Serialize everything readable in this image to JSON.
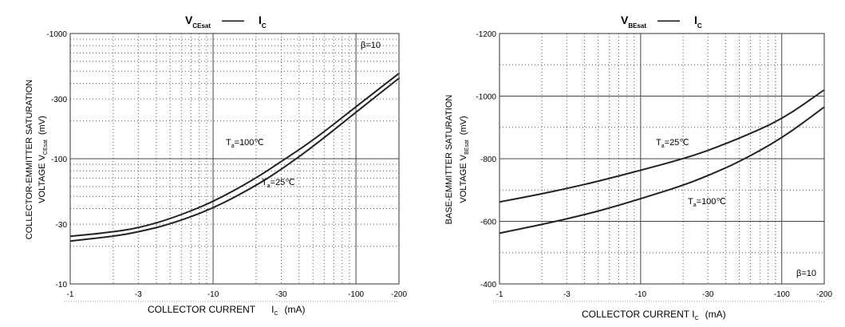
{
  "chart_data": [
    {
      "type": "line",
      "title": {
        "main": "V",
        "sub": "CEsat",
        "sep": "—",
        "main2": "I",
        "sub2": "C"
      },
      "xlabel": {
        "text": "COLLECTOR CURRENT",
        "sym": "I",
        "sub": "C",
        "unit": "(mA)"
      },
      "ylabel": {
        "line1": "COLLECTOR-EMMITTER SATURATION",
        "line2": "VOLTAGE",
        "sym": "V",
        "sub": "CEsat",
        "unit": "(mV)"
      },
      "x_scale": "log",
      "y_scale": "log",
      "xlim": [
        1,
        200
      ],
      "ylim": [
        10,
        1000
      ],
      "x_ticks": [
        {
          "value": 1,
          "label": "-1"
        },
        {
          "value": 3,
          "label": "-3"
        },
        {
          "value": 10,
          "label": "-10"
        },
        {
          "value": 30,
          "label": "-30"
        },
        {
          "value": 100,
          "label": "-100"
        },
        {
          "value": 200,
          "label": "-200"
        }
      ],
      "y_ticks": [
        {
          "value": 10,
          "label": "-10"
        },
        {
          "value": 30,
          "label": "-30"
        },
        {
          "value": 100,
          "label": "-100"
        },
        {
          "value": 300,
          "label": "-300"
        },
        {
          "value": 1000,
          "label": "-1000"
        }
      ],
      "beta_label": "β=10",
      "series": [
        {
          "label_main": "T",
          "label_sub": "a",
          "label_rest": "=100",
          "x": [
            1,
            2,
            3,
            5,
            10,
            20,
            30,
            50,
            100,
            200
          ],
          "y": [
            24,
            26,
            28,
            33,
            45,
            70,
            95,
            140,
            260,
            480
          ]
        },
        {
          "label_main": "T",
          "label_sub": "a",
          "label_rest": "=25",
          "x": [
            1,
            2,
            3,
            5,
            10,
            20,
            30,
            50,
            100,
            200
          ],
          "y": [
            22,
            24,
            26,
            30,
            40,
            61,
            82,
            125,
            235,
            440
          ]
        }
      ],
      "grid": true
    },
    {
      "type": "line",
      "title": {
        "main": "V",
        "sub": "BEsat",
        "sep": "—",
        "main2": "I",
        "sub2": "C"
      },
      "xlabel": {
        "text": "COLLECTOR CURRENT I",
        "sub": "C",
        "unit": "(mA)"
      },
      "ylabel": {
        "line1": "BASE-EMMITTER SATURATION",
        "line2": "VOLTAGE",
        "sym": "V",
        "sub": "BEsat",
        "unit": "(mV)"
      },
      "x_scale": "log",
      "y_scale": "linear",
      "xlim": [
        1,
        200
      ],
      "ylim": [
        400,
        1200
      ],
      "x_ticks": [
        {
          "value": 1,
          "label": "-1"
        },
        {
          "value": 3,
          "label": "-3"
        },
        {
          "value": 10,
          "label": "-10"
        },
        {
          "value": 30,
          "label": "-30"
        },
        {
          "value": 100,
          "label": "-100"
        },
        {
          "value": 200,
          "label": "-200"
        }
      ],
      "y_ticks": [
        {
          "value": 400,
          "label": "-400"
        },
        {
          "value": 600,
          "label": "-600"
        },
        {
          "value": 800,
          "label": "-800"
        },
        {
          "value": 1000,
          "label": "-1000"
        },
        {
          "value": 1200,
          "label": "-1200"
        }
      ],
      "beta_label": "β=10",
      "series": [
        {
          "label_main": "T",
          "label_sub": "a",
          "label_rest": "=25",
          "x": [
            1,
            2,
            3,
            5,
            10,
            20,
            30,
            50,
            100,
            200
          ],
          "y": [
            662,
            688,
            705,
            728,
            763,
            800,
            826,
            865,
            925,
            1020
          ]
        },
        {
          "label_main": "T",
          "label_sub": "a",
          "label_rest": "=100",
          "x": [
            1,
            2,
            3,
            5,
            10,
            20,
            30,
            50,
            100,
            200
          ],
          "y": [
            562,
            590,
            608,
            632,
            672,
            715,
            746,
            790,
            865,
            965
          ]
        }
      ],
      "grid": true
    }
  ]
}
